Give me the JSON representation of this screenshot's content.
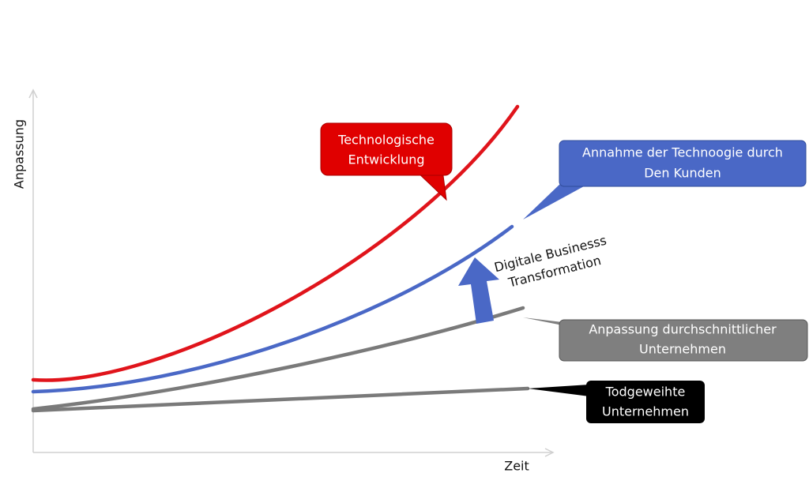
{
  "axes": {
    "y_label": "Anpassung",
    "x_label": "Zeit"
  },
  "callouts": [
    {
      "lines": [
        "Technologische",
        "Entwicklung"
      ]
    },
    {
      "lines": [
        "Annahme der Technoogie durch",
        "Den Kunden"
      ]
    },
    {
      "lines": [
        "Anpassung durchschnittlicher",
        "Unternehmen"
      ]
    },
    {
      "lines": [
        "Todgeweihte",
        "Unternehmen"
      ]
    }
  ],
  "transformation": {
    "lines": [
      "Digitale Businesss",
      "Transformation"
    ]
  }
}
